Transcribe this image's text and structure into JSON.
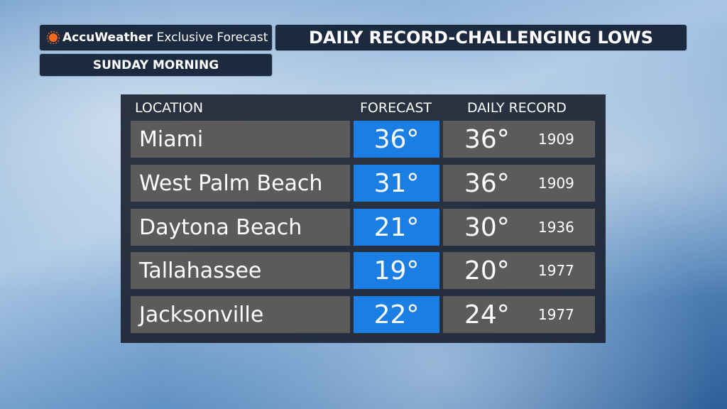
{
  "header": {
    "brand": "AccuWeather",
    "brand_suffix": "Exclusive Forecast",
    "title": "DAILY RECORD-CHALLENGING LOWS",
    "subtitle": "SUNDAY MORNING"
  },
  "table": {
    "columns": [
      "LOCATION",
      "FORECAST",
      "DAILY RECORD"
    ],
    "rows": [
      [
        "Miami",
        "36°",
        "36°",
        "1909"
      ],
      [
        "West Palm Beach",
        "31°",
        "36°",
        "1909"
      ],
      [
        "Daytona Beach",
        "21°",
        "30°",
        "1936"
      ],
      [
        "Tallahassee",
        "19°",
        "20°",
        "1977"
      ],
      [
        "Jacksonville",
        "22°",
        "24°",
        "1977"
      ]
    ]
  }
}
